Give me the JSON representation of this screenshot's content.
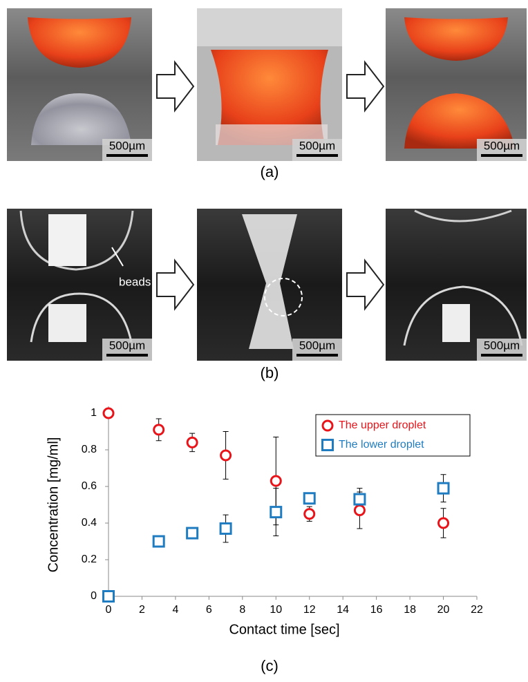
{
  "panels": [
    {
      "label": "(a)",
      "scale_bars": [
        "500µm",
        "500µm",
        "500µm"
      ]
    },
    {
      "label": "(b)",
      "scale_bars": [
        "500µm",
        "500µm",
        "500µm"
      ],
      "annotation": "beads"
    }
  ],
  "chart_data": {
    "type": "scatter",
    "label": "(c)",
    "xlabel": "Contact time [sec]",
    "ylabel": "Concentration [mg/ml]",
    "xlim": [
      0,
      22
    ],
    "ylim": [
      0,
      1
    ],
    "xticks": [
      0,
      2,
      4,
      6,
      8,
      10,
      12,
      14,
      16,
      18,
      20,
      22
    ],
    "yticks": [
      0,
      0.2,
      0.4,
      0.6,
      0.8,
      1
    ],
    "legend_position": "upper right",
    "series": [
      {
        "name": "The upper droplet",
        "color": "#e8141a",
        "marker": "circle",
        "x": [
          0,
          3,
          5,
          7,
          10,
          12,
          15,
          20
        ],
        "values": [
          1,
          0.91,
          0.84,
          0.77,
          0.63,
          0.45,
          0.47,
          0.4
        ],
        "errors": [
          null,
          0.06,
          0.05,
          0.13,
          0.24,
          0.04,
          0.1,
          0.08
        ]
      },
      {
        "name": "The lower droplet",
        "color": "#1f7cc1",
        "marker": "square",
        "x": [
          0,
          3,
          5,
          7,
          10,
          12,
          15,
          20
        ],
        "values": [
          0,
          0.3,
          0.345,
          0.37,
          0.46,
          0.535,
          0.53,
          0.59
        ],
        "errors": [
          null,
          null,
          null,
          0.075,
          0.13,
          null,
          0.06,
          0.075
        ]
      }
    ]
  }
}
